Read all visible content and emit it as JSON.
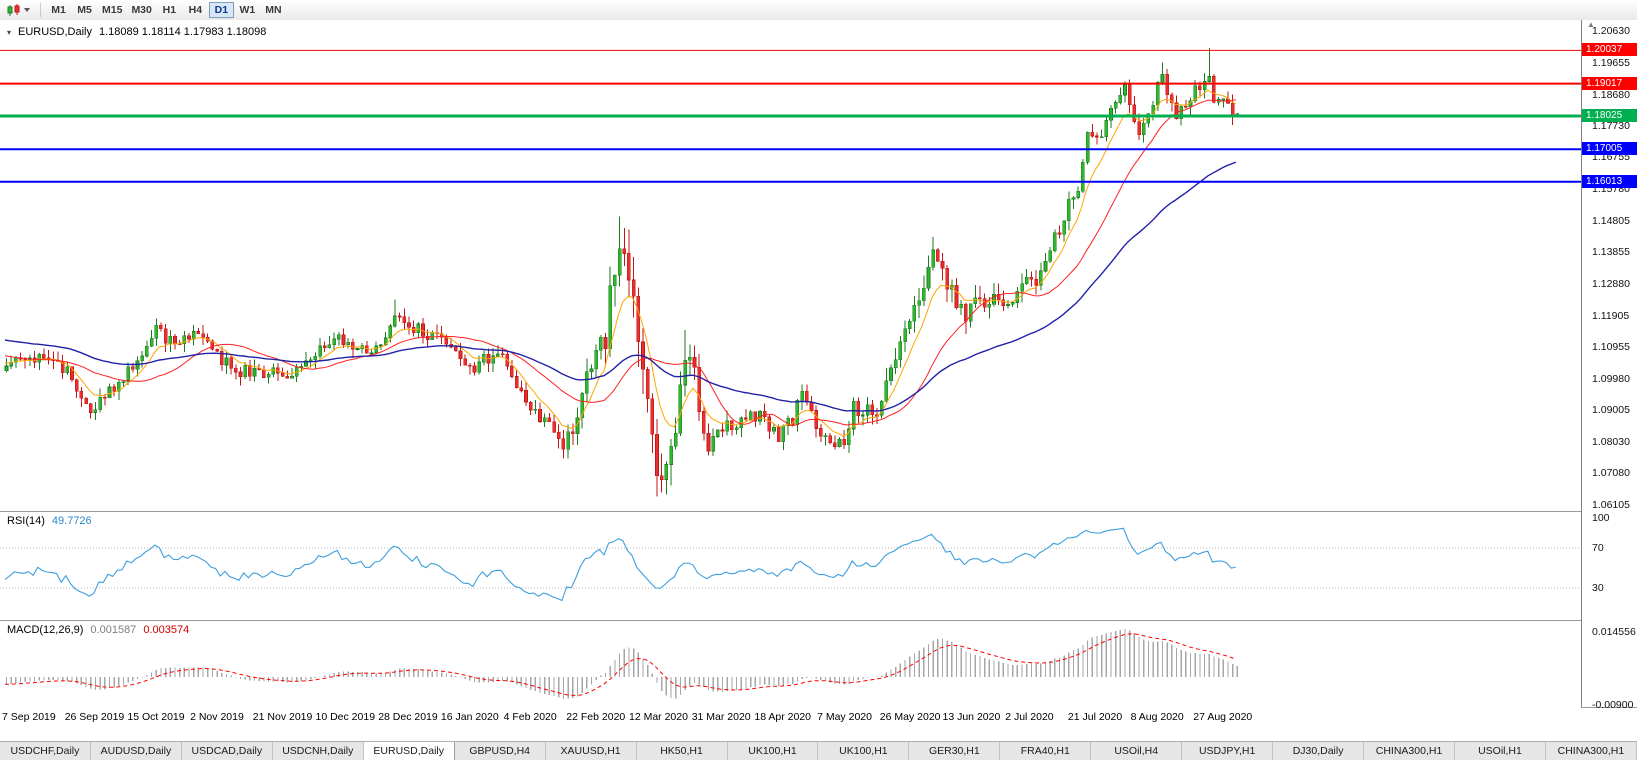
{
  "toolbar": {
    "chart_type_icon": "candlestick-chart-icon",
    "timeframes": [
      "M1",
      "M5",
      "M15",
      "M30",
      "H1",
      "H4",
      "D1",
      "W1",
      "MN"
    ],
    "active_timeframe": "D1"
  },
  "chart_header": {
    "title": "EURUSD,Daily",
    "ohlc": "1.18089 1.18114 1.17983 1.18098"
  },
  "chart_data": {
    "type": "candlestick",
    "symbol": "EURUSD",
    "period": "Daily",
    "open": "1.18089",
    "high": "1.18114",
    "low": "1.17983",
    "close": "1.18098",
    "y_top_price": 1.2063,
    "y_bottom_price": 1.06105,
    "y_axis_labels": [
      "1.20630",
      "1.19655",
      "1.18680",
      "1.17730",
      "1.16755",
      "1.15780",
      "1.14805",
      "1.13855",
      "1.12880",
      "1.11905",
      "1.10955",
      "1.09980",
      "1.09005",
      "1.08030",
      "1.07080",
      "1.06105"
    ],
    "x_axis_labels": [
      "7 Sep 2019",
      "26 Sep 2019",
      "15 Oct 2019",
      "2 Nov 2019",
      "21 Nov 2019",
      "10 Dec 2019",
      "28 Dec 2019",
      "16 Jan 2020",
      "4 Feb 2020",
      "22 Feb 2020",
      "12 Mar 2020",
      "31 Mar 2020",
      "18 Apr 2020",
      "7 May 2020",
      "26 May 2020",
      "13 Jun 2020",
      "2 Jul 2020",
      "21 Jul 2020",
      "8 Aug 2020",
      "27 Aug 2020"
    ],
    "num_candles": 264,
    "up_color": "#2DB82D",
    "up_border": "#1E7A1E",
    "down_color": "#E83030",
    "down_border": "#C01616",
    "levels": [
      {
        "label": "1.20037",
        "price": 1.20037,
        "color": "#FF0000",
        "width": 1,
        "role": "resistance"
      },
      {
        "label": "1.19017",
        "price": 1.19017,
        "color": "#FF0000",
        "width": 2,
        "role": "resistance"
      },
      {
        "label": "1.18025",
        "price": 1.18025,
        "color": "#00B050",
        "width": 3,
        "role": "pivot"
      },
      {
        "label": "1.17005",
        "price": 1.17005,
        "color": "#0000FF",
        "width": 2,
        "role": "support"
      },
      {
        "label": "1.16013",
        "price": 1.16013,
        "color": "#0000FF",
        "width": 2,
        "role": "support"
      }
    ],
    "price_path": [
      [
        -60,
        1.1235
      ],
      [
        -40,
        1.1165
      ],
      [
        -20,
        1.1105
      ],
      [
        -10,
        1.106
      ],
      [
        0,
        1.1035
      ],
      [
        4,
        1.1058
      ],
      [
        9,
        1.1072
      ],
      [
        13,
        1.1015
      ],
      [
        17,
        1.093
      ],
      [
        18,
        1.09
      ],
      [
        22,
        1.0958
      ],
      [
        27,
        1.104
      ],
      [
        32,
        1.1145
      ],
      [
        36,
        1.111
      ],
      [
        40,
        1.115
      ],
      [
        45,
        1.107
      ],
      [
        50,
        1.1022
      ],
      [
        55,
        1.101
      ],
      [
        61,
        1.1016
      ],
      [
        66,
        1.108
      ],
      [
        71,
        1.112
      ],
      [
        76,
        1.1082
      ],
      [
        80,
        1.1092
      ],
      [
        83,
        1.1212
      ],
      [
        86,
        1.116
      ],
      [
        91,
        1.1134
      ],
      [
        96,
        1.1092
      ],
      [
        100,
        1.1026
      ],
      [
        105,
        1.1088
      ],
      [
        108,
        1.1
      ],
      [
        111,
        1.0912
      ],
      [
        115,
        1.0872
      ],
      [
        119,
        1.0792
      ],
      [
        121,
        1.0852
      ],
      [
        125,
        1.103
      ],
      [
        128,
        1.1135
      ],
      [
        131,
        1.1448
      ],
      [
        134,
        1.1186
      ],
      [
        136,
        1.0992
      ],
      [
        139,
        1.0702
      ],
      [
        141,
        1.0772
      ],
      [
        143,
        1.088
      ],
      [
        145,
        1.1078
      ],
      [
        147,
        1.1002
      ],
      [
        149,
        1.0812
      ],
      [
        151,
        1.0792
      ],
      [
        154,
        1.086
      ],
      [
        158,
        1.0872
      ],
      [
        161,
        1.0876
      ],
      [
        165,
        1.0822
      ],
      [
        168,
        1.087
      ],
      [
        170,
        1.0978
      ],
      [
        172,
        1.0902
      ],
      [
        174,
        1.0832
      ],
      [
        177,
        1.0812
      ],
      [
        179,
        1.0802
      ],
      [
        181,
        1.0914
      ],
      [
        184,
        1.0896
      ],
      [
        186,
        1.0902
      ],
      [
        189,
        1.101
      ],
      [
        191,
        1.1136
      ],
      [
        194,
        1.123
      ],
      [
        198,
        1.1376
      ],
      [
        201,
        1.13
      ],
      [
        205,
        1.1176
      ],
      [
        208,
        1.125
      ],
      [
        210,
        1.1222
      ],
      [
        212,
        1.125
      ],
      [
        214,
        1.1242
      ],
      [
        217,
        1.128
      ],
      [
        220,
        1.1302
      ],
      [
        223,
        1.14
      ],
      [
        227,
        1.1524
      ],
      [
        229,
        1.159
      ],
      [
        231,
        1.1748
      ],
      [
        233,
        1.172
      ],
      [
        235,
        1.178
      ],
      [
        237,
        1.1858
      ],
      [
        239,
        1.1876
      ],
      [
        241,
        1.179
      ],
      [
        242,
        1.1742
      ],
      [
        244,
        1.181
      ],
      [
        247,
        1.193
      ],
      [
        250,
        1.1796
      ],
      [
        252,
        1.184
      ],
      [
        255,
        1.19
      ],
      [
        257,
        1.1908
      ],
      [
        258,
        1.1852
      ],
      [
        260,
        1.184
      ],
      [
        262,
        1.1816
      ],
      [
        263,
        1.181
      ]
    ],
    "spikes": [
      {
        "day": 18,
        "low": 1.0879
      },
      {
        "day": 83,
        "high": 1.124
      },
      {
        "day": 119,
        "low": 1.0778
      },
      {
        "day": 131,
        "high": 1.1495
      },
      {
        "day": 136,
        "low": 1.095
      },
      {
        "day": 139,
        "low": 1.0636
      },
      {
        "day": 140,
        "low": 1.0695
      },
      {
        "day": 145,
        "high": 1.1147
      },
      {
        "day": 198,
        "high": 1.1422
      },
      {
        "day": 247,
        "high": 1.1966
      },
      {
        "day": 257,
        "high": 1.2011
      }
    ],
    "moving_averages": [
      {
        "name": "fast-ma",
        "period": 8,
        "type": "ema",
        "color": "#FFA500",
        "width": 1
      },
      {
        "name": "mid-ma",
        "period": 21,
        "type": "sma",
        "color": "#FF2020",
        "width": 1
      },
      {
        "name": "slow-ma",
        "period": 55,
        "type": "ema",
        "color": "#2222A8",
        "width": 1.4
      }
    ],
    "rsi_panel": {
      "label": "RSI(14)",
      "value": "49.7726",
      "line_color": "#3E9EDE",
      "level_labels": [
        "100",
        "70",
        "30"
      ],
      "level_values": [
        100,
        70,
        30
      ],
      "dashed_levels": [
        70,
        30
      ]
    },
    "macd_panel": {
      "label": "MACD(12,26,9)",
      "value_main": "0.001587",
      "value_signal": "0.003574",
      "hist_color": "#A6A6A6",
      "signal_color": "#FF0000",
      "scale_top_label": "0.014556",
      "scale_top_value": 0.014556,
      "scale_bottom_label": "-0.00900",
      "scale_bottom_value": -0.009
    }
  },
  "tab_bar": {
    "tabs": [
      "USDCHF,Daily",
      "AUDUSD,Daily",
      "USDCAD,Daily",
      "USDCNH,Daily",
      "EURUSD,Daily",
      "GBPUSD,H4",
      "XAUUSD,H1",
      "HK50,H1",
      "UK100,H1",
      "UK100,H1",
      "GER30,H1",
      "FRA40,H1",
      "USOil,H4",
      "USDJPY,H1",
      "DJ30,Daily",
      "CHINA300,H1",
      "USOil,H1",
      "CHINA300,H1"
    ],
    "active_index": 4
  }
}
